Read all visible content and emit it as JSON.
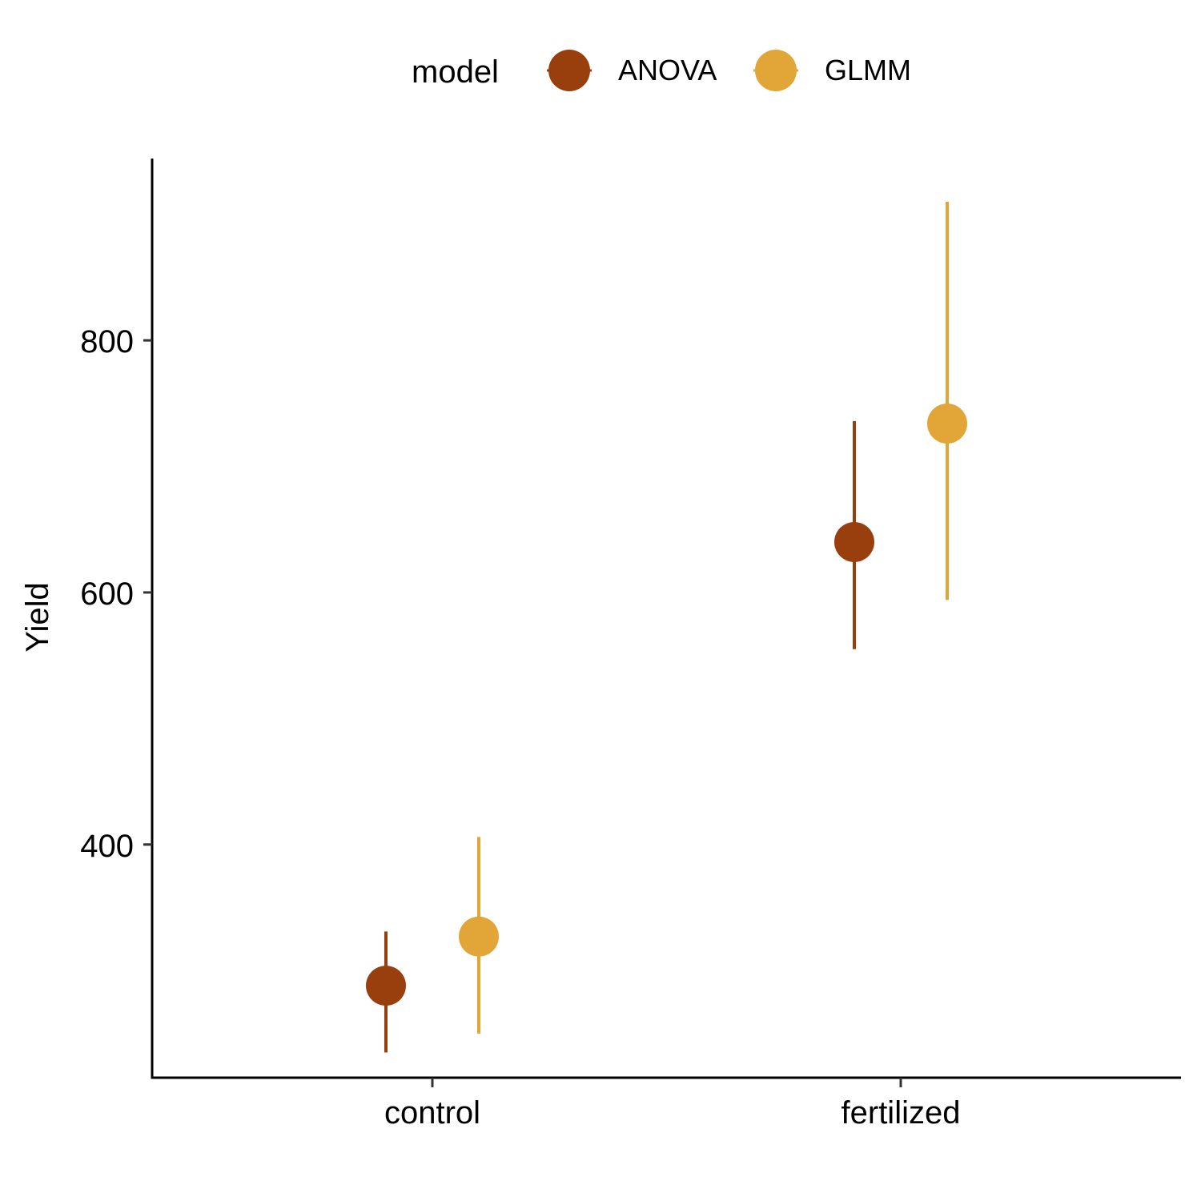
{
  "chart_data": {
    "type": "pointrange",
    "title": "",
    "xlabel": "",
    "ylabel": "Yield",
    "categories": [
      "control",
      "fertilized"
    ],
    "ylim": [
      215,
      943
    ],
    "yticks": [
      400,
      600,
      800
    ],
    "legend": {
      "title": "model",
      "position": "top"
    },
    "series": [
      {
        "name": "ANOVA",
        "color": "#993F0E",
        "values": [
          {
            "category": "control",
            "y": 288,
            "ymin": 235,
            "ymax": 331
          },
          {
            "category": "fertilized",
            "y": 640,
            "ymin": 555,
            "ymax": 736
          }
        ]
      },
      {
        "name": "GLMM",
        "color": "#E2A537",
        "values": [
          {
            "category": "control",
            "y": 327,
            "ymin": 250,
            "ymax": 406
          },
          {
            "category": "fertilized",
            "y": 734,
            "ymin": 594,
            "ymax": 910
          }
        ]
      }
    ],
    "grid": false
  }
}
